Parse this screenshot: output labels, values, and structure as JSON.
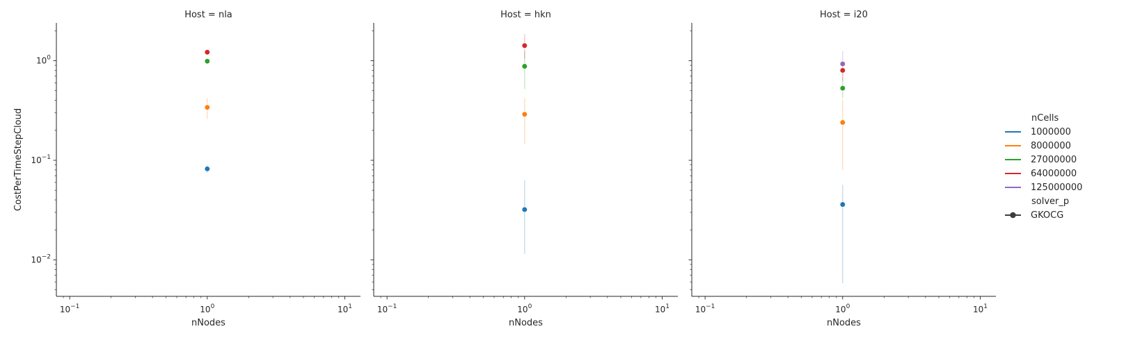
{
  "chart_data": {
    "type": "scatter",
    "xlabel": "nNodes",
    "ylabel": "CostPerTimeStepCloud",
    "x_scale": "log",
    "y_scale": "log",
    "xlim": [
      0.08,
      13
    ],
    "ylim": [
      0.0043,
      2.4
    ],
    "x_ticks": [
      {
        "value": 0.1,
        "base": "10",
        "exp": "−1"
      },
      {
        "value": 1,
        "base": "10",
        "exp": "0"
      },
      {
        "value": 10,
        "base": "10",
        "exp": "1"
      }
    ],
    "y_ticks": [
      {
        "value": 0.01,
        "base": "10",
        "exp": "−2"
      },
      {
        "value": 0.1,
        "base": "10",
        "exp": "−1"
      },
      {
        "value": 1,
        "base": "10",
        "exp": "0"
      }
    ],
    "legend": {
      "position": "right",
      "hue_title": "nCells",
      "hue_entries": [
        {
          "label": "1000000",
          "color": "#1f77b4"
        },
        {
          "label": "8000000",
          "color": "#ff7f0e"
        },
        {
          "label": "27000000",
          "color": "#2ca02c"
        },
        {
          "label": "64000000",
          "color": "#d62728"
        },
        {
          "label": "125000000",
          "color": "#9467bd"
        }
      ],
      "style_title": "solver_p",
      "style_entries": [
        {
          "label": "GKOCG",
          "color": "#3d3d3d"
        }
      ]
    },
    "panels": [
      {
        "title": "Host = nla",
        "points": [
          {
            "series": "1000000",
            "x": 1,
            "y": 0.082,
            "ci": [
              0.075,
              0.09
            ]
          },
          {
            "series": "8000000",
            "x": 1,
            "y": 0.34,
            "ci": [
              0.26,
              0.42
            ]
          },
          {
            "series": "27000000",
            "x": 1,
            "y": 0.99,
            "ci": [
              0.95,
              1.03
            ]
          },
          {
            "series": "64000000",
            "x": 1,
            "y": 1.22,
            "ci": [
              1.18,
              1.27
            ]
          }
        ]
      },
      {
        "title": "Host = hkn",
        "points": [
          {
            "series": "1000000",
            "x": 1,
            "y": 0.032,
            "ci": [
              0.0115,
              0.063
            ]
          },
          {
            "series": "8000000",
            "x": 1,
            "y": 0.29,
            "ci": [
              0.145,
              0.42
            ]
          },
          {
            "series": "27000000",
            "x": 1,
            "y": 0.88,
            "ci": [
              0.52,
              1.25
            ]
          },
          {
            "series": "64000000",
            "x": 1,
            "y": 1.42,
            "ci": [
              1.05,
              1.85
            ]
          }
        ]
      },
      {
        "title": "Host = i20",
        "points": [
          {
            "series": "1000000",
            "x": 1,
            "y": 0.036,
            "ci": [
              0.0058,
              0.057
            ]
          },
          {
            "series": "8000000",
            "x": 1,
            "y": 0.24,
            "ci": [
              0.08,
              0.4
            ]
          },
          {
            "series": "27000000",
            "x": 1,
            "y": 0.53,
            "ci": [
              0.42,
              0.68
            ]
          },
          {
            "series": "64000000",
            "x": 1,
            "y": 0.8,
            "ci": [
              0.63,
              0.98
            ]
          },
          {
            "series": "125000000",
            "x": 1,
            "y": 0.93,
            "ci": [
              0.7,
              1.25
            ]
          }
        ]
      }
    ]
  }
}
